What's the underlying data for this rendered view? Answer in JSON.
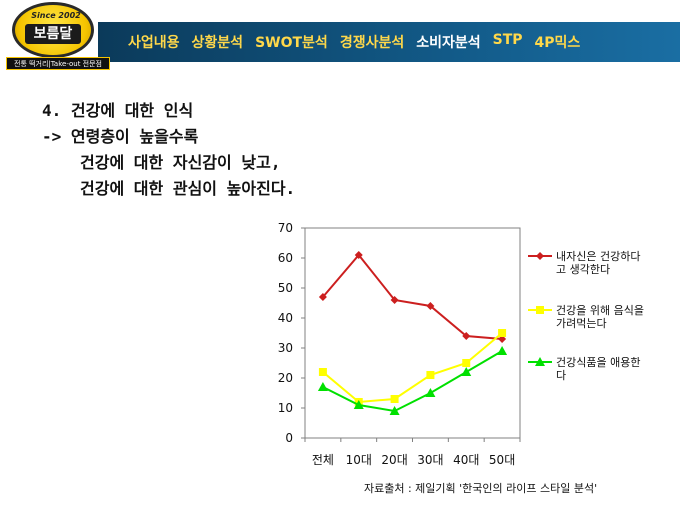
{
  "logo": {
    "since": "Since 2002",
    "name": "보름달",
    "tagline": "전통 떡거리|Take-out 전문점"
  },
  "nav": {
    "items": [
      "사업내용",
      "상황분석",
      "SWOT분석",
      "경쟁사분석",
      "소비자분석",
      "STP",
      "4P믹스"
    ],
    "active_index": 4,
    "colors": {
      "inactive": "#ffd84a",
      "active": "#ffffff",
      "band": "#125a88"
    }
  },
  "content": {
    "heading": "4. 건강에 대한 인식",
    "line1": "-> 연령층이 높을수록",
    "line2": "건강에 대한 자신감이 낮고,",
    "line3": "건강에 대한 관심이 높아진다."
  },
  "chart_data": {
    "type": "line",
    "categories": [
      "전체",
      "10대",
      "20대",
      "30대",
      "40대",
      "50대"
    ],
    "ylim": [
      0,
      70
    ],
    "yticks": [
      0,
      10,
      20,
      30,
      40,
      50,
      60,
      70
    ],
    "grid": false,
    "legend_position": "right",
    "series": [
      {
        "name": "내자신은 건강하다 고 생각한다",
        "legend_lines": [
          "내자신은 건강하다",
          "고 생각한다"
        ],
        "color": "#cc1f1f",
        "marker": "diamond",
        "values": [
          47,
          61,
          46,
          44,
          34,
          33
        ]
      },
      {
        "name": "건강을 위해 음식을 가려먹는다",
        "legend_lines": [
          "건강을 위해 음식을",
          "가려먹는다"
        ],
        "color": "#ffff00",
        "marker": "square",
        "values": [
          22,
          12,
          13,
          21,
          25,
          35
        ]
      },
      {
        "name": "건강식품을 애용한 다",
        "legend_lines": [
          "건강식품을 애용한",
          "다"
        ],
        "color": "#00e000",
        "marker": "triangle",
        "values": [
          17,
          11,
          9,
          15,
          22,
          29
        ]
      }
    ]
  },
  "source": "자료출처 : 제일기획 '한국인의 라이프 스타일 분석'"
}
